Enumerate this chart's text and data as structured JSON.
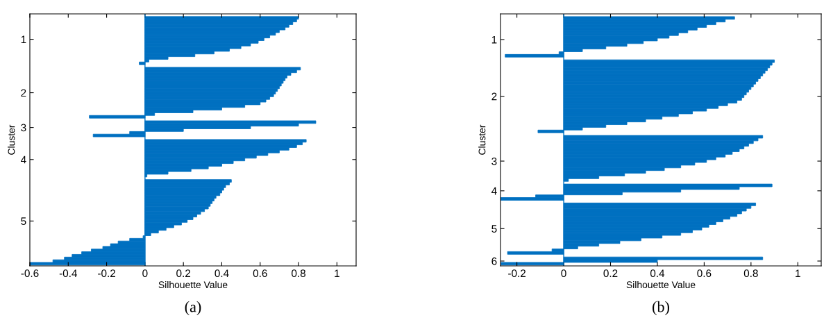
{
  "chart_data": [
    {
      "type": "bar",
      "orientation": "horizontal",
      "color": "#0070c0",
      "xlabel": "Silhouette Value",
      "ylabel": "Cluster",
      "annotations": [
        "(a)"
      ],
      "ref_lines": [
        {
          "axis": "x",
          "value": 0,
          "color": "#0070c0"
        }
      ],
      "xlim": [
        -0.6,
        1.1
      ],
      "xticks": [
        -0.6,
        -0.4,
        -0.2,
        0,
        0.2,
        0.4,
        0.6,
        0.8,
        1
      ],
      "categories": [
        null,
        null,
        null,
        null,
        null,
        null,
        null,
        null,
        "1",
        null,
        null,
        null,
        null,
        null,
        null,
        null,
        null,
        null,
        null,
        null,
        null,
        null,
        null,
        null,
        null,
        null,
        null,
        null,
        "2",
        null,
        null,
        null,
        null,
        null,
        null,
        null,
        null,
        null,
        null,
        null,
        null,
        "3",
        null,
        null,
        null,
        null,
        null,
        null,
        null,
        null,
        null,
        null,
        null,
        "4",
        null,
        null,
        null,
        null,
        null,
        null,
        null,
        null,
        null,
        null,
        null,
        null,
        null,
        null,
        null,
        null,
        null,
        null,
        null,
        null,
        null,
        null,
        "5",
        null,
        null,
        null,
        null,
        null,
        null,
        null,
        null,
        null,
        null,
        null,
        null,
        null,
        null,
        null,
        null
      ],
      "values": [
        0.8,
        0.79,
        0.77,
        0.75,
        0.73,
        0.7,
        0.68,
        0.65,
        0.62,
        0.59,
        0.55,
        0.5,
        0.44,
        0.36,
        0.26,
        0.12,
        0.02,
        -0.03,
        null,
        0.81,
        0.79,
        0.76,
        0.74,
        0.73,
        0.72,
        0.71,
        0.7,
        0.69,
        0.68,
        0.67,
        0.65,
        0.63,
        0.6,
        0.52,
        0.4,
        0.25,
        0.05,
        -0.29,
        null,
        0.89,
        0.8,
        0.55,
        0.2,
        -0.08,
        -0.27,
        null,
        0.84,
        0.82,
        0.79,
        0.75,
        0.7,
        0.64,
        0.58,
        0.52,
        0.46,
        0.4,
        0.33,
        0.24,
        0.12,
        0.01,
        null,
        0.45,
        0.44,
        0.42,
        0.41,
        0.4,
        0.39,
        0.37,
        0.36,
        0.35,
        0.34,
        0.33,
        0.31,
        0.29,
        0.27,
        0.25,
        0.22,
        0.19,
        0.15,
        0.11,
        0.07,
        0.03,
        -0.01,
        -0.08,
        -0.14,
        -0.18,
        -0.22,
        -0.28,
        -0.33,
        -0.38,
        -0.42,
        -0.48,
        -0.6
      ]
    },
    {
      "type": "bar",
      "orientation": "horizontal",
      "color": "#0070c0",
      "xlabel": "Silhouette Value",
      "ylabel": "Cluster",
      "annotations": [
        "(b)"
      ],
      "ref_lines": [
        {
          "axis": "x",
          "value": 0,
          "color": "#0070c0"
        }
      ],
      "xlim": [
        -0.27,
        1.1
      ],
      "xticks": [
        -0.2,
        0,
        0.2,
        0.4,
        0.6,
        0.8,
        1
      ],
      "categories": [
        null,
        null,
        null,
        null,
        null,
        null,
        null,
        null,
        "1",
        null,
        null,
        null,
        null,
        null,
        null,
        null,
        null,
        null,
        null,
        null,
        null,
        null,
        null,
        null,
        null,
        null,
        null,
        null,
        null,
        "2",
        null,
        null,
        null,
        null,
        null,
        null,
        null,
        null,
        null,
        null,
        null,
        null,
        null,
        null,
        null,
        null,
        null,
        null,
        null,
        null,
        null,
        null,
        null,
        "3",
        null,
        null,
        null,
        null,
        null,
        null,
        null,
        null,
        null,
        null,
        "4",
        null,
        null,
        null,
        null,
        null,
        null,
        null,
        null,
        null,
        null,
        null,
        null,
        null,
        "5",
        null,
        null,
        null,
        null,
        null,
        null,
        null,
        null,
        null,
        null,
        null,
        "6",
        null
      ],
      "values": [
        0.73,
        0.69,
        0.65,
        0.61,
        0.57,
        0.53,
        0.49,
        0.45,
        0.4,
        0.34,
        0.27,
        0.18,
        0.08,
        -0.02,
        -0.25,
        null,
        0.9,
        0.89,
        0.88,
        0.87,
        0.86,
        0.85,
        0.84,
        0.83,
        0.82,
        0.81,
        0.8,
        0.79,
        0.78,
        0.77,
        0.76,
        0.74,
        0.7,
        0.66,
        0.61,
        0.55,
        0.49,
        0.42,
        0.35,
        0.27,
        0.18,
        0.08,
        -0.11,
        null,
        0.85,
        0.83,
        0.81,
        0.79,
        0.77,
        0.75,
        0.72,
        0.69,
        0.65,
        0.61,
        0.56,
        0.5,
        0.43,
        0.35,
        0.26,
        0.15,
        0.02,
        null,
        0.89,
        0.75,
        0.5,
        0.25,
        -0.12,
        -0.27,
        null,
        0.82,
        0.8,
        0.78,
        0.76,
        0.74,
        0.71,
        0.68,
        0.65,
        0.62,
        0.59,
        0.55,
        0.5,
        0.42,
        0.33,
        0.24,
        0.15,
        0.06,
        -0.05,
        -0.24,
        null,
        0.85,
        0.4,
        -0.27
      ]
    }
  ]
}
